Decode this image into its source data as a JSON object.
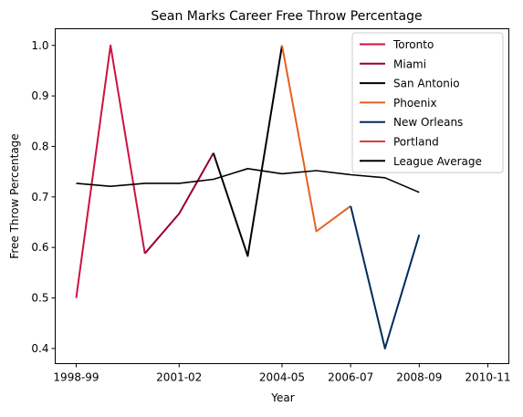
{
  "chart_data": {
    "type": "line",
    "title": "Sean Marks Career Free Throw Percentage",
    "xlabel": "Year",
    "ylabel": "Free Throw Percentage",
    "x": [
      "1998-99",
      "1999-00",
      "2000-01",
      "2001-02",
      "2002-03",
      "2003-04",
      "2004-05",
      "2005-06",
      "2006-07",
      "2007-08",
      "2008-09",
      "2009-10",
      "2010-11"
    ],
    "x_tick_labels": [
      "1998-99",
      "2001-02",
      "2004-05",
      "2006-07",
      "2008-09",
      "2010-11"
    ],
    "y_ticks": [
      0.4,
      0.5,
      0.6,
      0.7,
      0.8,
      0.9,
      1.0
    ],
    "y_tick_labels": [
      "0.4",
      "0.5",
      "0.6",
      "0.7",
      "0.8",
      "0.9",
      "1.0"
    ],
    "ylim": [
      0.37,
      1.033
    ],
    "grid": false,
    "legend_position": "top-right",
    "series": [
      {
        "name": "Toronto",
        "color": "#CE1141",
        "points": [
          [
            "1998-99",
            0.5
          ],
          [
            "1999-00",
            1.0
          ],
          [
            "2000-01",
            0.588
          ]
        ]
      },
      {
        "name": "Miami",
        "color": "#98002E",
        "points": [
          [
            "2000-01",
            0.588
          ],
          [
            "2001-02",
            0.667
          ],
          [
            "2002-03",
            0.787
          ]
        ]
      },
      {
        "name": "San Antonio",
        "color": "#000000",
        "points": [
          [
            "2002-03",
            0.787
          ],
          [
            "2003-04",
            0.583
          ],
          [
            "2004-05",
            1.0
          ]
        ]
      },
      {
        "name": "Phoenix",
        "color": "#E56020",
        "points": [
          [
            "2004-05",
            1.0
          ],
          [
            "2005-06",
            0.632
          ],
          [
            "2006-07",
            0.682
          ]
        ]
      },
      {
        "name": "New Orleans",
        "color": "#002B5C",
        "points": [
          [
            "2006-07",
            0.682
          ],
          [
            "2007-08",
            0.4
          ],
          [
            "2008-09",
            0.625
          ]
        ]
      },
      {
        "name": "Portland",
        "color": "#E03A3E",
        "points": []
      },
      {
        "name": "League Average",
        "color": "#000000",
        "points": [
          [
            "1998-99",
            0.727
          ],
          [
            "1999-00",
            0.721
          ],
          [
            "2000-01",
            0.727
          ],
          [
            "2001-02",
            0.727
          ],
          [
            "2002-03",
            0.735
          ],
          [
            "2003-04",
            0.756
          ],
          [
            "2004-05",
            0.746
          ],
          [
            "2005-06",
            0.752
          ],
          [
            "2006-07",
            0.744
          ],
          [
            "2007-08",
            0.738
          ],
          [
            "2008-09",
            0.709
          ]
        ]
      }
    ]
  }
}
